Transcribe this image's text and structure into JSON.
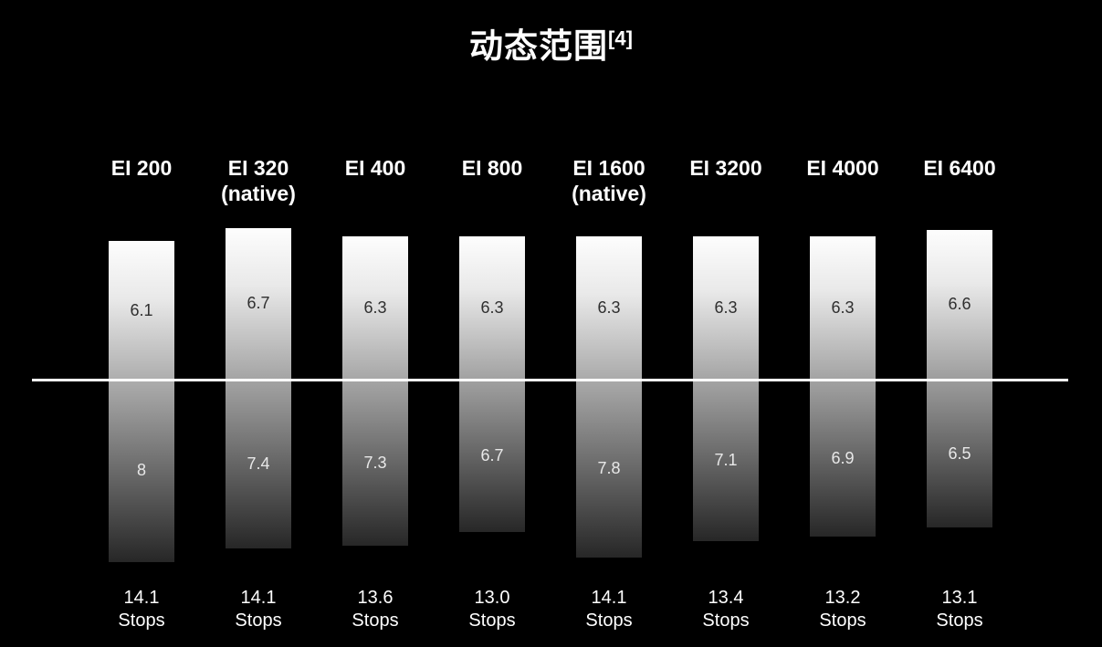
{
  "title": {
    "text": "动态范围",
    "superscript": "[4]"
  },
  "colors": {
    "background": "#000000",
    "heading_text": "#ffffff",
    "above_value_text": "#2f2f2f",
    "below_value_text": "#e8e8e8",
    "bar_gradient_top": "#fdfdfd",
    "bar_gradient_bottom": "#272727",
    "middle_gray_line": "#ffffff"
  },
  "chart_data": {
    "type": "bar",
    "title": "动态范围",
    "footnote_marker": "[4]",
    "subtitle": "",
    "xlabel": "",
    "ylabel": "",
    "legend": "none",
    "grid": false,
    "baseline": "middle-gray horizontal line across all bars",
    "unit": "Stops",
    "categories": [
      "EI 200",
      "EI 320 (native)",
      "EI 400",
      "EI 800",
      "EI 1600 (native)",
      "EI 3200",
      "EI 4000",
      "EI 6400"
    ],
    "category_lines": [
      [
        "EI 200"
      ],
      [
        "EI 320",
        "(native)"
      ],
      [
        "EI 400"
      ],
      [
        "EI 800"
      ],
      [
        "EI 1600",
        "(native)"
      ],
      [
        "EI 3200"
      ],
      [
        "EI 4000"
      ],
      [
        "EI 6400"
      ]
    ],
    "series": [
      {
        "name": "stops-above-middle-gray",
        "values": [
          6.1,
          6.7,
          6.3,
          6.3,
          6.3,
          6.3,
          6.3,
          6.6
        ],
        "value_labels": [
          "6.1",
          "6.7",
          "6.3",
          "6.3",
          "6.3",
          "6.3",
          "6.3",
          "6.6"
        ]
      },
      {
        "name": "stops-below-middle-gray",
        "values": [
          8,
          7.4,
          7.3,
          6.7,
          7.8,
          7.1,
          6.9,
          6.5
        ],
        "value_labels": [
          "8",
          "7.4",
          "7.3",
          "6.7",
          "7.8",
          "7.1",
          "6.9",
          "6.5"
        ]
      }
    ],
    "totals": [
      "14.1",
      "14.1",
      "13.6",
      "13.0",
      "14.1",
      "13.4",
      "13.2",
      "13.1"
    ],
    "totals_unit_label": "Stops"
  }
}
